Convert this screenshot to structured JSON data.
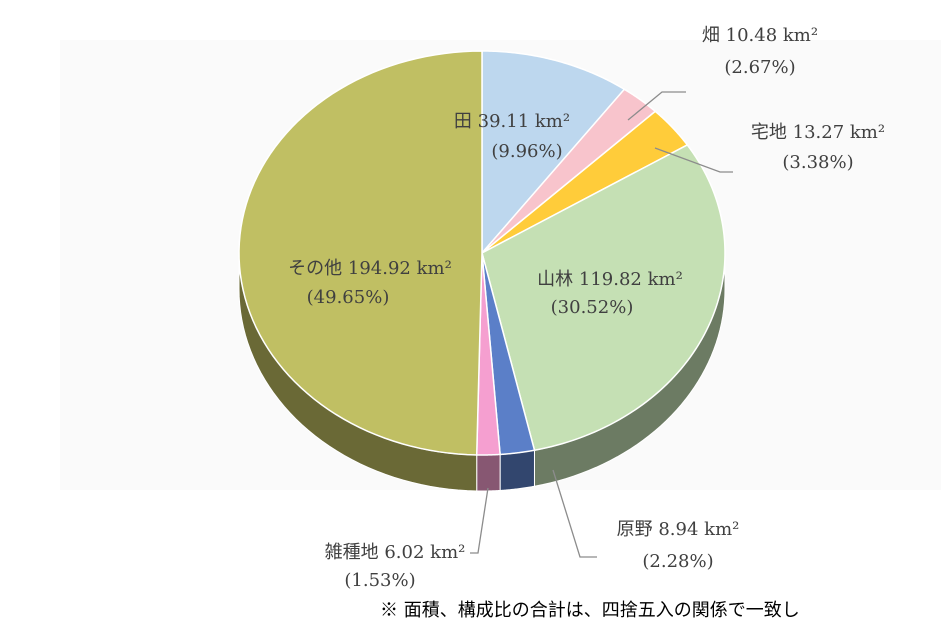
{
  "chart_data": {
    "type": "pie",
    "categories": [
      "田",
      "畑",
      "宅地",
      "山林",
      "原野",
      "雑種地",
      "その他"
    ],
    "values": [
      39.11,
      10.48,
      13.27,
      119.82,
      8.94,
      6.02,
      194.92
    ],
    "value_labels": [
      "39.11 km²",
      "10.48 km²",
      "13.27 km²",
      "119.82 km²",
      "8.94 km²",
      "6.02 km²",
      "194.92 km²"
    ],
    "percentages": [
      9.96,
      2.67,
      3.38,
      30.52,
      2.28,
      1.53,
      49.65
    ],
    "percentage_labels": [
      "(9.96%)",
      "(2.67%)",
      "(3.38%)",
      "(30.52%)",
      "(2.28%)",
      "(1.53%)",
      "(49.65%)"
    ],
    "colors": [
      "#bdd7ee",
      "#f8c4cc",
      "#ffcc3a",
      "#c5e0b4",
      "#5b7fc8",
      "#f59fd0",
      "#c0bf63"
    ],
    "note": "※ 面積、構成比の合計は、四捨五入の関係で一致し"
  }
}
